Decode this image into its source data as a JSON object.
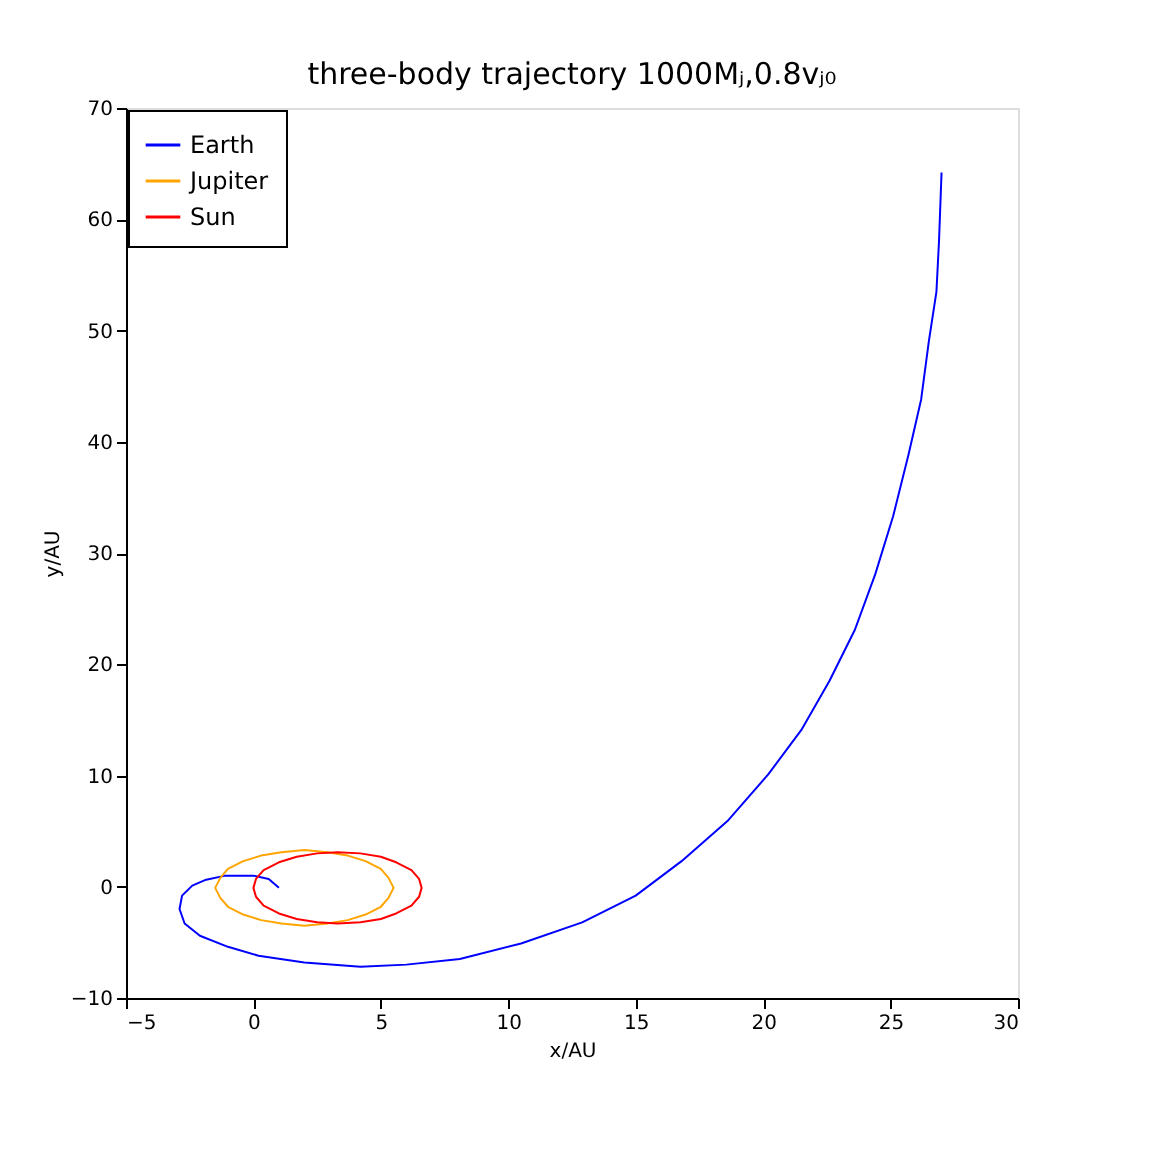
{
  "chart_data": {
    "type": "line",
    "title": "three-body trajectory 1000Mⱼ,0.8vⱼ₀",
    "xlabel": "x/AU",
    "ylabel": "y/AU",
    "xlim": [
      -5,
      30
    ],
    "xticks": [
      -5,
      0,
      5,
      10,
      15,
      20,
      25,
      30
    ],
    "ylim": [
      -10,
      70
    ],
    "yticks": [
      -10,
      0,
      10,
      20,
      30,
      40,
      50,
      60,
      70
    ],
    "grid": false,
    "legend": "top left",
    "line_style": "solid",
    "marker": "none",
    "series": [
      {
        "name": "Earth",
        "color": "#0000ff",
        "x": [
          1.0,
          0.6,
          0.0,
          -1.1,
          -1.9,
          -2.4,
          -2.8,
          -2.9,
          -2.7,
          -2.1,
          -1.0,
          0.2,
          2.0,
          4.2,
          6.0,
          8.1,
          10.5,
          12.9,
          15.0,
          16.8,
          18.6,
          20.2,
          21.5,
          22.6,
          23.6,
          24.4,
          25.1,
          25.7,
          26.2,
          26.5,
          26.8,
          26.9,
          27.0
        ],
        "values": [
          -0.1,
          0.7,
          1.0,
          1.0,
          0.6,
          0.1,
          -0.8,
          -2.0,
          -3.3,
          -4.4,
          -5.4,
          -6.2,
          -6.8,
          -7.2,
          -7.0,
          -6.5,
          -5.1,
          -3.2,
          -0.8,
          2.3,
          5.9,
          10.1,
          14.1,
          18.5,
          23.1,
          28.1,
          33.3,
          38.8,
          43.8,
          49.0,
          53.5,
          58.0,
          64.2
        ]
      },
      {
        "name": "Jupiter",
        "color": "#ffa500",
        "x": [
          5.5,
          5.3,
          5.0,
          4.4,
          3.7,
          2.9,
          2.0,
          1.1,
          0.3,
          -0.4,
          -1.0,
          -1.3,
          -1.5,
          -1.3,
          -1.0,
          -0.4,
          0.3,
          1.1,
          2.0,
          2.9,
          3.7,
          4.4,
          5.0,
          5.3,
          5.5,
          5.3
        ],
        "values": [
          -0.1,
          0.8,
          1.6,
          2.3,
          2.8,
          3.1,
          3.3,
          3.1,
          2.8,
          2.3,
          1.6,
          0.8,
          -0.1,
          -1.0,
          -1.8,
          -2.5,
          -3.0,
          -3.3,
          -3.5,
          -3.3,
          -3.0,
          -2.5,
          -1.8,
          -1.0,
          -0.1,
          0.8
        ]
      },
      {
        "name": "Sun",
        "color": "#ff0000",
        "x": [
          6.6,
          6.5,
          6.2,
          5.6,
          5.0,
          4.2,
          3.3,
          2.5,
          1.7,
          1.0,
          0.4,
          0.1,
          0.0,
          0.1,
          0.4,
          1.0,
          1.7,
          2.5,
          3.3,
          4.2,
          5.0,
          5.6,
          6.2,
          6.5,
          6.6,
          6.5
        ],
        "values": [
          -0.1,
          0.7,
          1.5,
          2.2,
          2.7,
          3.0,
          3.1,
          3.0,
          2.7,
          2.2,
          1.5,
          0.7,
          -0.1,
          -0.9,
          -1.7,
          -2.4,
          -2.9,
          -3.2,
          -3.3,
          -3.2,
          -2.9,
          -2.4,
          -1.7,
          -0.9,
          -0.1,
          0.7
        ]
      }
    ]
  }
}
